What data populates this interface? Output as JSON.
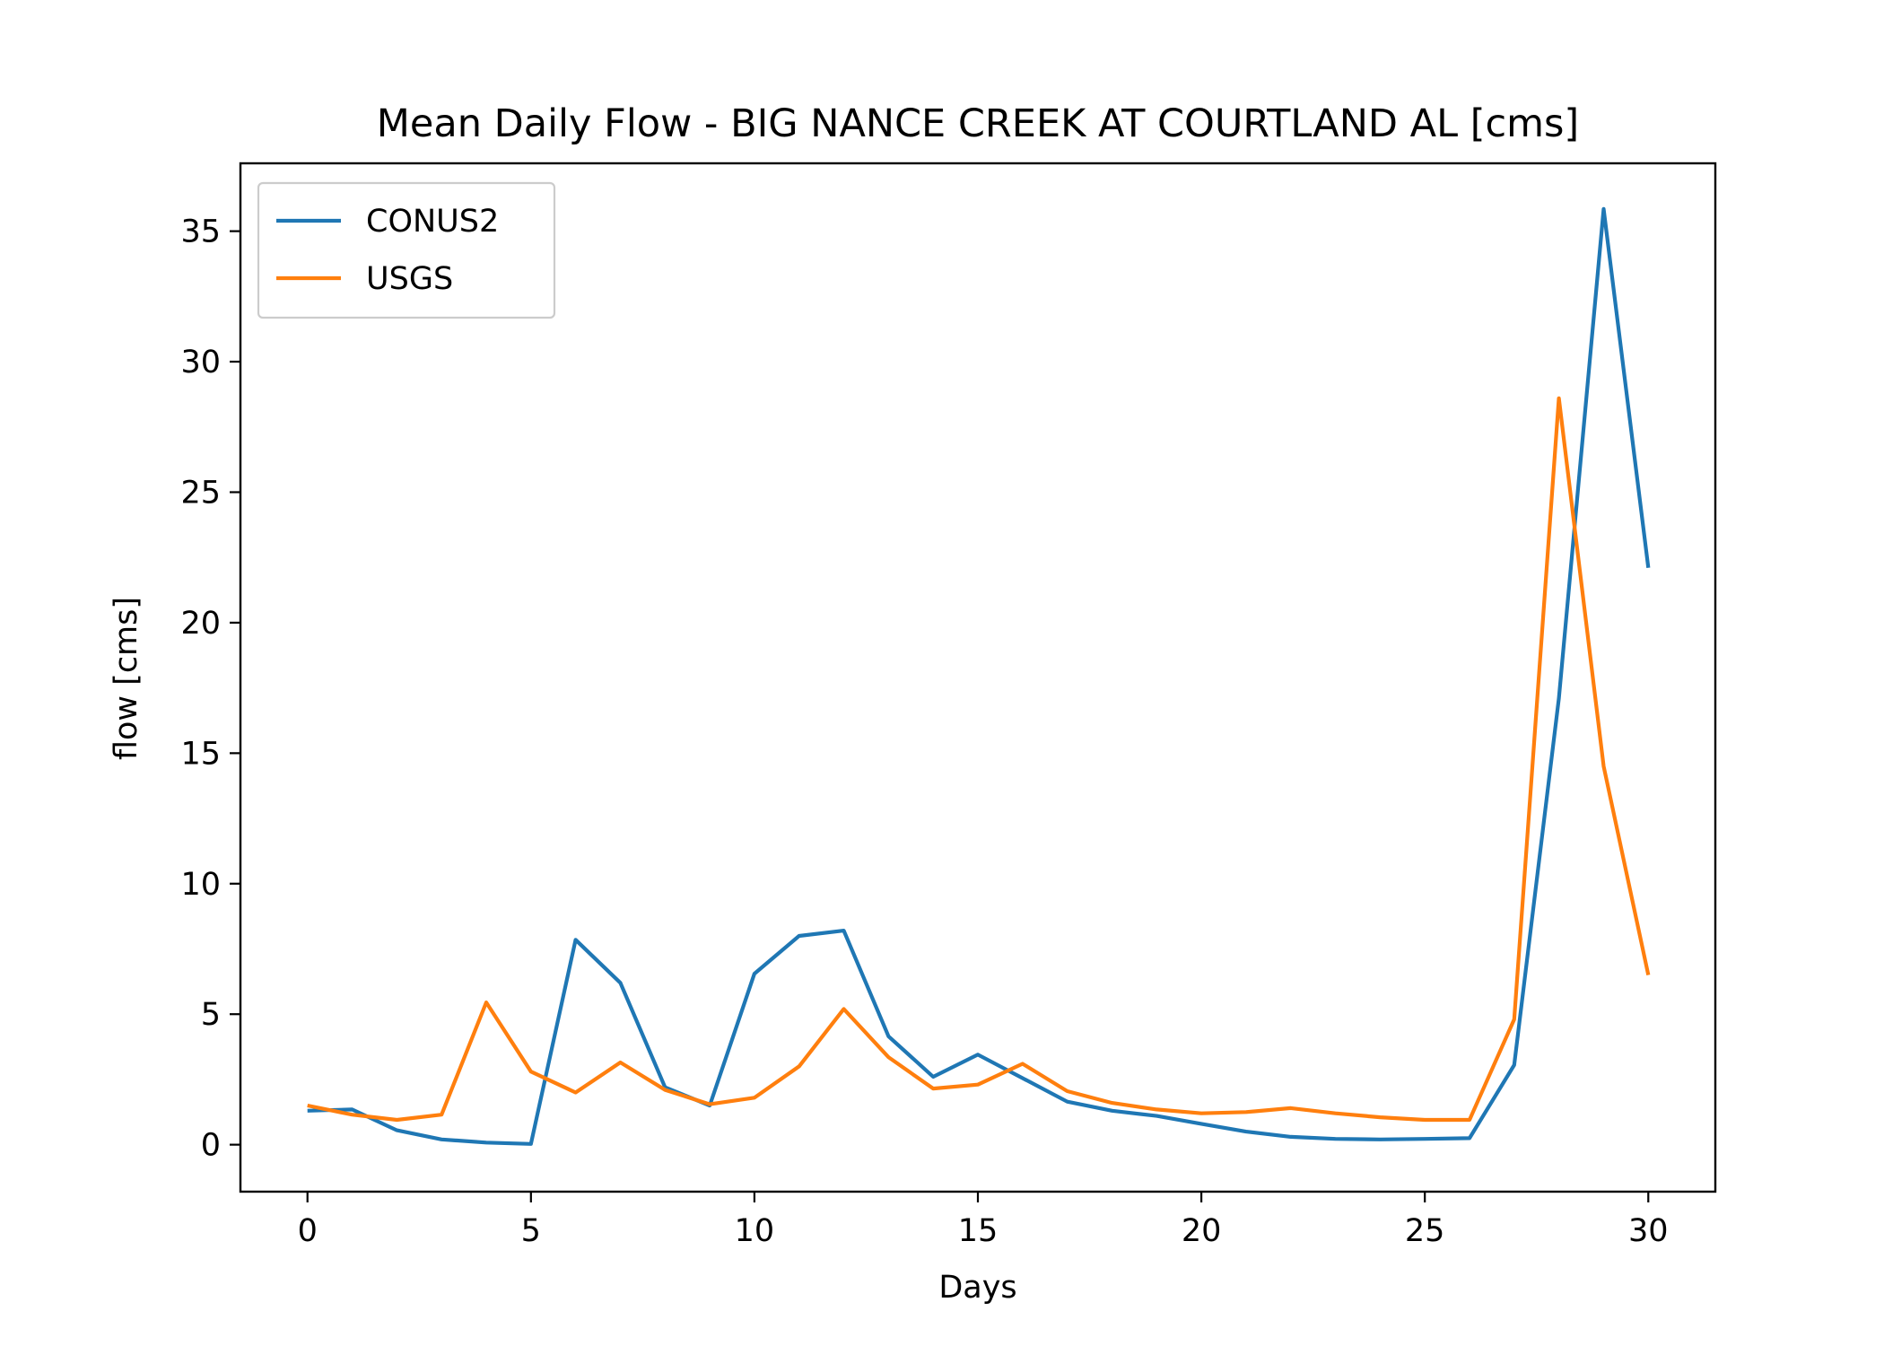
{
  "chart_data": {
    "type": "line",
    "title": "Mean Daily Flow - BIG NANCE CREEK AT COURTLAND AL [cms]",
    "xlabel": "Days",
    "ylabel": "flow [cms]",
    "xlim": [
      -1.5,
      31.5
    ],
    "ylim": [
      -1.8,
      37.6
    ],
    "xticks": [
      0,
      5,
      10,
      15,
      20,
      25,
      30
    ],
    "yticks": [
      0,
      5,
      10,
      15,
      20,
      25,
      30,
      35
    ],
    "grid": false,
    "legend_position": "top-left",
    "x": [
      0,
      1,
      2,
      3,
      4,
      5,
      6,
      7,
      8,
      9,
      10,
      11,
      12,
      13,
      14,
      15,
      16,
      17,
      18,
      19,
      20,
      21,
      22,
      23,
      24,
      25,
      26,
      27,
      28,
      29,
      30
    ],
    "series": [
      {
        "name": "CONUS2",
        "color": "#1f77b4",
        "values": [
          1.3,
          1.35,
          0.55,
          0.2,
          0.08,
          0.03,
          7.85,
          6.2,
          2.2,
          1.5,
          6.55,
          8.0,
          8.2,
          4.15,
          2.6,
          3.45,
          2.55,
          1.65,
          1.3,
          1.1,
          0.8,
          0.5,
          0.3,
          0.22,
          0.2,
          0.22,
          0.25,
          3.05,
          17.1,
          35.85,
          22.1
        ]
      },
      {
        "name": "USGS",
        "color": "#ff7f0e",
        "values": [
          1.5,
          1.15,
          0.95,
          1.15,
          5.45,
          2.8,
          2.0,
          3.15,
          2.1,
          1.55,
          1.8,
          3.0,
          5.2,
          3.35,
          2.15,
          2.3,
          3.1,
          2.05,
          1.6,
          1.35,
          1.2,
          1.25,
          1.4,
          1.2,
          1.05,
          0.95,
          0.95,
          4.8,
          28.6,
          14.5,
          6.5
        ]
      }
    ]
  }
}
